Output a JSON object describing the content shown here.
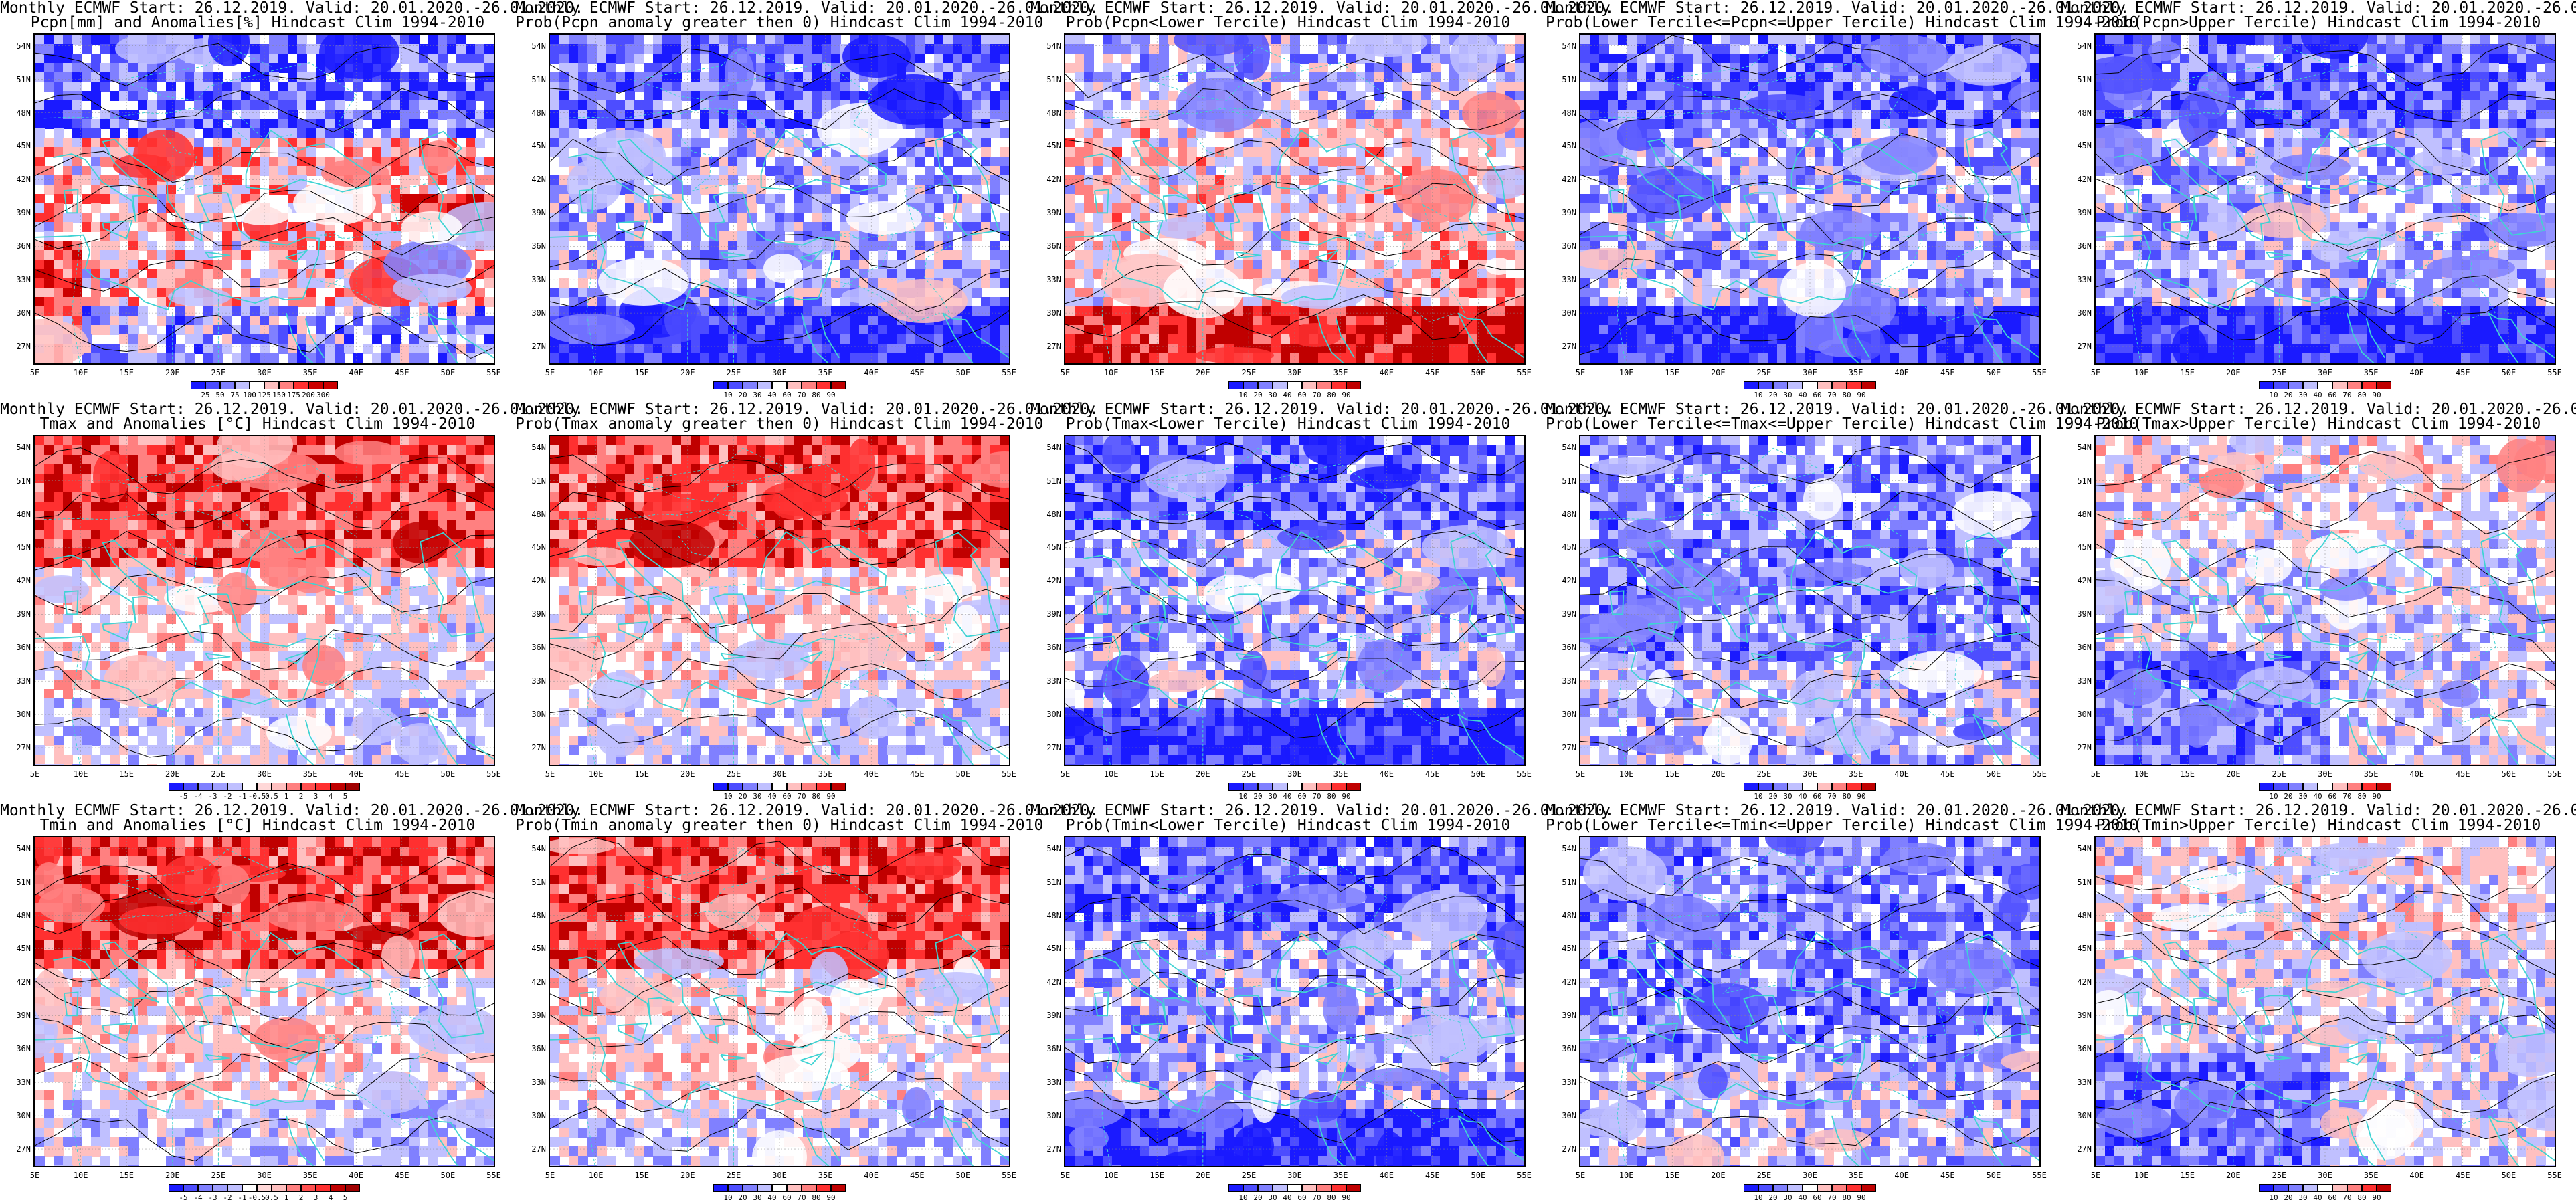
{
  "common_title": "Monthly ECMWF Start: 26.12.2019. Valid: 20.01.2020.-26.01.2020.",
  "lat_labels": [
    "54N",
    "51N",
    "48N",
    "45N",
    "42N",
    "39N",
    "36N",
    "33N",
    "30N",
    "27N"
  ],
  "lon_labels": [
    "5E",
    "10E",
    "15E",
    "20E",
    "25E",
    "30E",
    "35E",
    "40E",
    "45E",
    "50E",
    "55E"
  ],
  "colors": {
    "coast": "#3fd3d3",
    "deep_blue": "#1a1aff",
    "blue": "#4d4dff",
    "mid_blue": "#8080ff",
    "light_blue": "#c0c0ff",
    "white": "#ffffff",
    "light_red": "#ffc0c0",
    "mid_red": "#ff8080",
    "red": "#ff3030",
    "deep_red": "#c00000"
  },
  "panels": [
    {
      "id": "pcpn-anom",
      "subtitle": "Pcpn[mm] and Anomalies[%] Hindcast Clim 1994-2010",
      "scheme": "pcpn",
      "colorbar": [
        "25",
        "50",
        "75",
        "100",
        "125",
        "150",
        "175",
        "200",
        "300"
      ]
    },
    {
      "id": "pcpn-prob-gt0",
      "subtitle": "Prob(Pcpn anomaly greater then 0) Hindcast Clim 1994-2010",
      "scheme": "blue-heavy",
      "colorbar": [
        "10",
        "20",
        "30",
        "40",
        "60",
        "70",
        "80",
        "90"
      ]
    },
    {
      "id": "pcpn-lower",
      "subtitle": "Prob(Pcpn<Lower Tercile) Hindcast Clim 1994-2010",
      "scheme": "red-south",
      "colorbar": [
        "10",
        "20",
        "30",
        "40",
        "60",
        "70",
        "80",
        "90"
      ]
    },
    {
      "id": "pcpn-middle",
      "subtitle": "Prob(Lower Tercile<=Pcpn<=Upper Tercile) Hindcast Clim 1994-2010",
      "scheme": "blue-heavy",
      "colorbar": [
        "10",
        "20",
        "30",
        "40",
        "60",
        "70",
        "80",
        "90"
      ]
    },
    {
      "id": "pcpn-upper",
      "subtitle": "Prob(Pcpn>Upper Tercile) Hindcast Clim 1994-2010",
      "scheme": "blue-heavy",
      "colorbar": [
        "10",
        "20",
        "30",
        "40",
        "60",
        "70",
        "80",
        "90"
      ]
    },
    {
      "id": "tmax-anom",
      "subtitle": "Tmax and Anomalies [°C] Hindcast Clim 1994-2010",
      "scheme": "red-north",
      "colorbar": [
        "-5",
        "-4",
        "-3",
        "-2",
        "-1",
        "-0.5",
        "0.5",
        "1",
        "2",
        "3",
        "4",
        "5"
      ]
    },
    {
      "id": "tmax-prob-gt0",
      "subtitle": "Prob(Tmax anomaly greater then 0) Hindcast Clim 1994-2010",
      "scheme": "red-north",
      "colorbar": [
        "10",
        "20",
        "30",
        "40",
        "60",
        "70",
        "80",
        "90"
      ]
    },
    {
      "id": "tmax-lower",
      "subtitle": "Prob(Tmax<Lower Tercile) Hindcast Clim 1994-2010",
      "scheme": "blue-heavy",
      "colorbar": [
        "10",
        "20",
        "30",
        "40",
        "60",
        "70",
        "80",
        "90"
      ]
    },
    {
      "id": "tmax-middle",
      "subtitle": "Prob(Lower Tercile<=Tmax<=Upper Tercile) Hindcast Clim 1994-2010",
      "scheme": "blue-mid",
      "colorbar": [
        "10",
        "20",
        "30",
        "40",
        "60",
        "70",
        "80",
        "90"
      ]
    },
    {
      "id": "tmax-upper",
      "subtitle": "Prob(Tmax>Upper Tercile) Hindcast Clim 1994-2010",
      "scheme": "blue-light",
      "colorbar": [
        "10",
        "20",
        "30",
        "40",
        "60",
        "70",
        "80",
        "90"
      ]
    },
    {
      "id": "tmin-anom",
      "subtitle": "Tmin and Anomalies [°C] Hindcast Clim 1994-2010",
      "scheme": "red-north",
      "colorbar": [
        "-5",
        "-4",
        "-3",
        "-2",
        "-1",
        "-0.5",
        "0.5",
        "1",
        "2",
        "3",
        "4",
        "5"
      ]
    },
    {
      "id": "tmin-prob-gt0",
      "subtitle": "Prob(Tmin anomaly greater then 0) Hindcast Clim 1994-2010",
      "scheme": "red-north",
      "colorbar": [
        "10",
        "20",
        "30",
        "40",
        "60",
        "70",
        "80",
        "90"
      ]
    },
    {
      "id": "tmin-lower",
      "subtitle": "Prob(Tmin<Lower Tercile) Hindcast Clim 1994-2010",
      "scheme": "blue-heavy",
      "colorbar": [
        "10",
        "20",
        "30",
        "40",
        "60",
        "70",
        "80",
        "90"
      ]
    },
    {
      "id": "tmin-middle",
      "subtitle": "Prob(Lower Tercile<=Tmin<=Upper Tercile) Hindcast Clim 1994-2010",
      "scheme": "blue-mid",
      "colorbar": [
        "10",
        "20",
        "30",
        "40",
        "60",
        "70",
        "80",
        "90"
      ]
    },
    {
      "id": "tmin-upper",
      "subtitle": "Prob(Tmin>Upper Tercile) Hindcast Clim 1994-2010",
      "scheme": "blue-light",
      "colorbar": [
        "10",
        "20",
        "30",
        "40",
        "60",
        "70",
        "80",
        "90"
      ]
    }
  ]
}
